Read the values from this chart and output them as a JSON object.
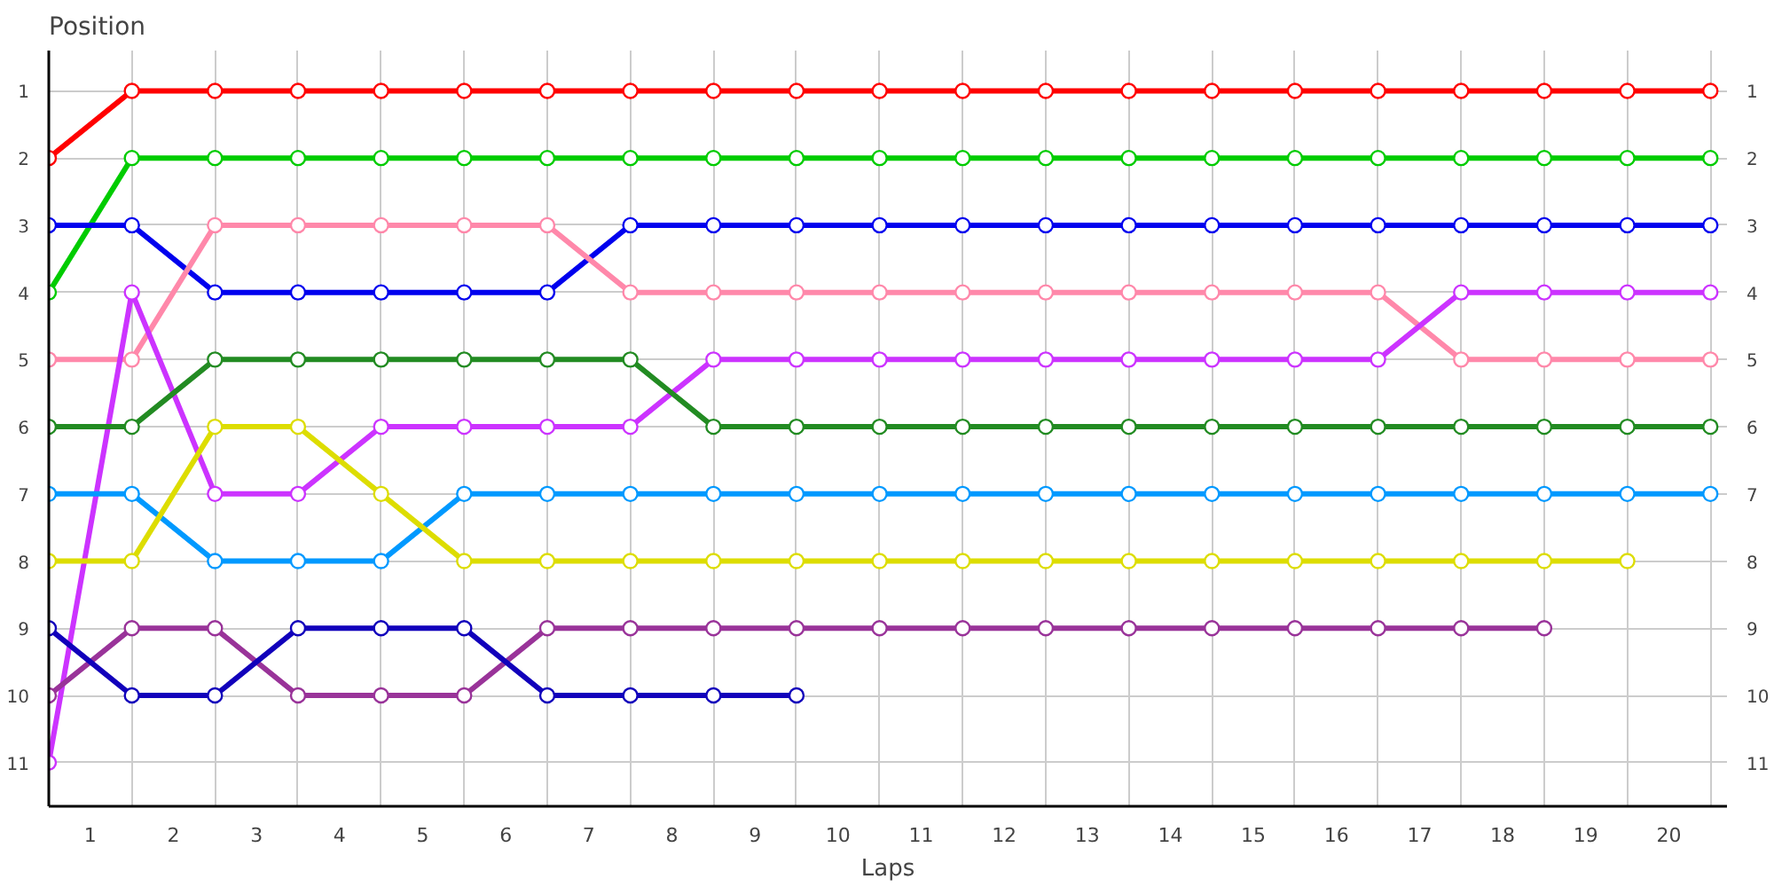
{
  "chart_data": {
    "type": "line",
    "ylabel": "Position",
    "xlabel": "Laps",
    "x": [
      0,
      1,
      2,
      3,
      4,
      5,
      6,
      7,
      8,
      9,
      10,
      11,
      12,
      13,
      14,
      15,
      16,
      17,
      18,
      19,
      20
    ],
    "xlim": [
      0,
      20.2
    ],
    "xticks": [
      {
        "value": 0,
        "label": null
      },
      {
        "value": 0.5,
        "label": "1"
      },
      {
        "value": 1,
        "label": null
      },
      {
        "value": 1.5,
        "label": "2"
      },
      {
        "value": 2,
        "label": null
      },
      {
        "value": 2.5,
        "label": "3"
      },
      {
        "value": 3,
        "label": null
      },
      {
        "value": 3.5,
        "label": "4"
      },
      {
        "value": 4,
        "label": null
      },
      {
        "value": 4.5,
        "label": "5"
      },
      {
        "value": 5,
        "label": null
      },
      {
        "value": 5.5,
        "label": "6"
      },
      {
        "value": 6,
        "label": null
      },
      {
        "value": 6.5,
        "label": "7"
      },
      {
        "value": 7,
        "label": null
      },
      {
        "value": 7.5,
        "label": "8"
      },
      {
        "value": 8,
        "label": null
      },
      {
        "value": 8.5,
        "label": "9"
      },
      {
        "value": 9,
        "label": null
      },
      {
        "value": 9.5,
        "label": "10"
      },
      {
        "value": 10,
        "label": null
      },
      {
        "value": 10.5,
        "label": "11"
      },
      {
        "value": 11,
        "label": null
      },
      {
        "value": 11.5,
        "label": "12"
      },
      {
        "value": 12,
        "label": null
      },
      {
        "value": 12.5,
        "label": "13"
      },
      {
        "value": 13,
        "label": null
      },
      {
        "value": 13.5,
        "label": "14"
      },
      {
        "value": 14,
        "label": null
      },
      {
        "value": 14.5,
        "label": "15"
      },
      {
        "value": 15,
        "label": null
      },
      {
        "value": 15.5,
        "label": "16"
      },
      {
        "value": 16,
        "label": null
      },
      {
        "value": 16.5,
        "label": "17"
      },
      {
        "value": 17,
        "label": null
      },
      {
        "value": 17.5,
        "label": "18"
      },
      {
        "value": 18,
        "label": null
      },
      {
        "value": 18.5,
        "label": "19"
      },
      {
        "value": 19,
        "label": null
      },
      {
        "value": 19.5,
        "label": "20"
      },
      {
        "value": 20,
        "label": null
      }
    ],
    "ylim": [
      11.65,
      0.4
    ],
    "yticks": [
      1,
      2,
      3,
      4,
      5,
      6,
      7,
      8,
      9,
      10,
      11
    ],
    "y2lim": [
      11.65,
      0.4
    ],
    "y2ticks": [
      1,
      2,
      3,
      4,
      5,
      6,
      7,
      8,
      9,
      10,
      11
    ],
    "grid": true,
    "marker": "circle",
    "line_style": "solid",
    "series": [
      {
        "color": "#ff0000",
        "values": [
          2,
          1,
          1,
          1,
          1,
          1,
          1,
          1,
          1,
          1,
          1,
          1,
          1,
          1,
          1,
          1,
          1,
          1,
          1,
          1,
          1
        ]
      },
      {
        "color": "#00cc00",
        "values": [
          4,
          2,
          2,
          2,
          2,
          2,
          2,
          2,
          2,
          2,
          2,
          2,
          2,
          2,
          2,
          2,
          2,
          2,
          2,
          2,
          2
        ]
      },
      {
        "color": "#0000ee",
        "values": [
          3,
          3,
          4,
          4,
          4,
          4,
          4,
          3,
          3,
          3,
          3,
          3,
          3,
          3,
          3,
          3,
          3,
          3,
          3,
          3,
          3
        ]
      },
      {
        "color": "#ff88aa",
        "values": [
          5,
          5,
          3,
          3,
          3,
          3,
          3,
          4,
          4,
          4,
          4,
          4,
          4,
          4,
          4,
          4,
          4,
          5,
          5,
          5,
          5
        ]
      },
      {
        "color": "#cc33ff",
        "values": [
          11,
          4,
          7,
          7,
          6,
          6,
          6,
          6,
          5,
          5,
          5,
          5,
          5,
          5,
          5,
          5,
          5,
          4,
          4,
          4,
          4
        ]
      },
      {
        "color": "#228b22",
        "values": [
          6,
          6,
          5,
          5,
          5,
          5,
          5,
          5,
          6,
          6,
          6,
          6,
          6,
          6,
          6,
          6,
          6,
          6,
          6,
          6,
          6
        ]
      },
      {
        "color": "#0099ff",
        "values": [
          7,
          7,
          8,
          8,
          8,
          7,
          7,
          7,
          7,
          7,
          7,
          7,
          7,
          7,
          7,
          7,
          7,
          7,
          7,
          7,
          7
        ]
      },
      {
        "color": "#dddd00",
        "values": [
          8,
          8,
          6,
          6,
          7,
          8,
          8,
          8,
          8,
          8,
          8,
          8,
          8,
          8,
          8,
          8,
          8,
          8,
          8,
          8,
          null
        ]
      },
      {
        "color": "#993399",
        "values": [
          10,
          9,
          9,
          10,
          10,
          10,
          9,
          9,
          9,
          9,
          9,
          9,
          9,
          9,
          9,
          9,
          9,
          9,
          9,
          null,
          null
        ]
      },
      {
        "color": "#1100bb",
        "values": [
          9,
          10,
          10,
          9,
          9,
          9,
          10,
          10,
          10,
          10,
          null,
          null,
          null,
          null,
          null,
          null,
          null,
          null,
          null,
          null,
          null
        ]
      }
    ]
  }
}
